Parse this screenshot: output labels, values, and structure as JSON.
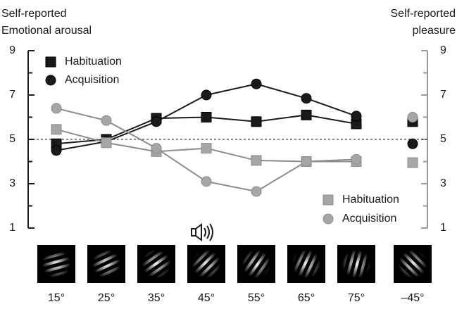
{
  "chart_data": {
    "type": "line",
    "ylabel": [
      "Self-reported",
      "Emotional arousal"
    ],
    "y2label": [
      "Self-reported",
      "pleasure"
    ],
    "categories": [
      "15°",
      "25°",
      "35°",
      "45°",
      "55°",
      "65°",
      "75°",
      null,
      "–45°"
    ],
    "ylim": [
      1,
      9
    ],
    "yticks": [
      1,
      3,
      5,
      7,
      9
    ],
    "yminorticks": [
      2,
      4,
      6,
      8
    ],
    "y2lim": [
      1,
      9
    ],
    "y2ticks": [
      1,
      3,
      5,
      7,
      9
    ],
    "y2minorticks": [
      2,
      4,
      6,
      8
    ],
    "reference_line": 5,
    "series": [
      {
        "name": "Habituation",
        "marker": "square",
        "color": "#1a1a1a",
        "values": [
          4.8,
          5.0,
          5.95,
          6.0,
          5.8,
          6.1,
          5.7,
          null,
          5.8
        ]
      },
      {
        "name": "Acquisition",
        "marker": "circle",
        "color": "#1a1a1a",
        "values": [
          4.5,
          4.9,
          5.8,
          7.0,
          7.5,
          6.85,
          6.05,
          null,
          4.8
        ]
      },
      {
        "name": "Habituation",
        "marker": "square",
        "color": "#a6a6a6",
        "axis": "y2",
        "values": [
          5.45,
          4.85,
          4.45,
          4.6,
          4.05,
          4.0,
          4.0,
          null,
          3.95
        ]
      },
      {
        "name": "Acquisition",
        "marker": "circle",
        "color": "#a6a6a6",
        "axis": "y2",
        "values": [
          6.4,
          5.85,
          4.6,
          3.1,
          2.65,
          4.0,
          4.1,
          null,
          6.0
        ]
      }
    ]
  }
}
